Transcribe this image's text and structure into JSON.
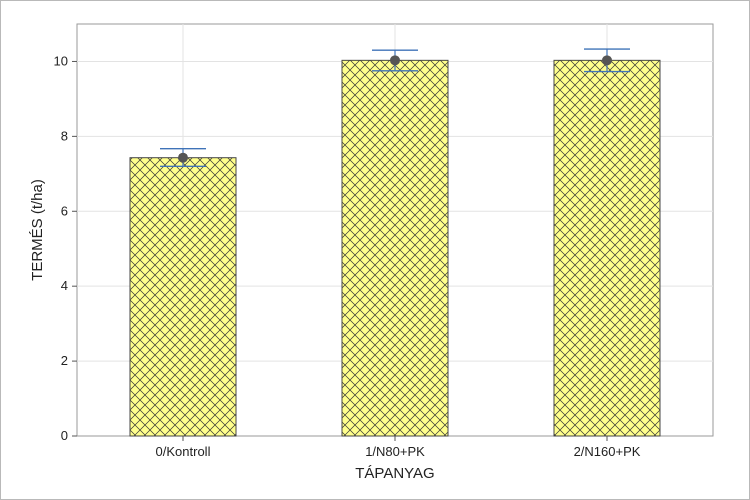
{
  "chart_data": {
    "type": "bar",
    "xlabel": "TÁPANYAG",
    "ylabel": "TERMÉS (t/ha)",
    "categories": [
      "0/Kontroll",
      "1/N80+PK",
      "2/N160+PK"
    ],
    "values": [
      7.43,
      10.03,
      10.03
    ],
    "error_bars": [
      {
        "low": 7.2,
        "high": 7.67
      },
      {
        "low": 9.75,
        "high": 10.3
      },
      {
        "low": 9.73,
        "high": 10.33
      }
    ],
    "ylim": [
      0,
      11
    ],
    "yticks": [
      0,
      2,
      4,
      6,
      8,
      10
    ],
    "grid": true,
    "bar_color": "#ffff8c",
    "hatch_color": "#333333",
    "error_bar_color": "#3f73b8",
    "mean_marker_color": "#555555"
  }
}
